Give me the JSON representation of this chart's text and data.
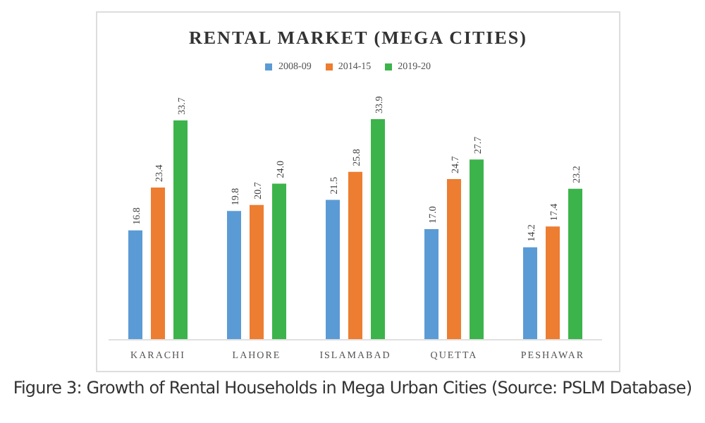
{
  "chart_data": {
    "type": "bar",
    "title": "RENTAL MARKET (MEGA CITIES)",
    "categories": [
      "KARACHI",
      "LAHORE",
      "ISLAMABAD",
      "QUETTA",
      "PESHAWAR"
    ],
    "series": [
      {
        "name": "2008-09",
        "color": "#5b9bd5",
        "values": [
          16.8,
          19.8,
          21.5,
          17.0,
          14.2
        ],
        "value_labels": [
          "16.8",
          "19.8",
          "21.5",
          "17.0",
          "14.2"
        ]
      },
      {
        "name": "2014-15",
        "color": "#ed7d31",
        "values": [
          23.4,
          20.7,
          25.8,
          24.7,
          17.4
        ],
        "value_labels": [
          "23.4",
          "20.7",
          "25.8",
          "24.7",
          "17.4"
        ]
      },
      {
        "name": "2019-20",
        "color": "#3cb44b",
        "values": [
          33.7,
          24.0,
          33.9,
          27.7,
          23.2
        ],
        "value_labels": [
          "33.7",
          "24.0",
          "33.9",
          "27.7",
          "23.2"
        ]
      }
    ],
    "legend": "top",
    "annotations": [
      "Figure 3: Growth of Rental Households in Mega Urban Cities (Source: PSLM Database)"
    ]
  }
}
